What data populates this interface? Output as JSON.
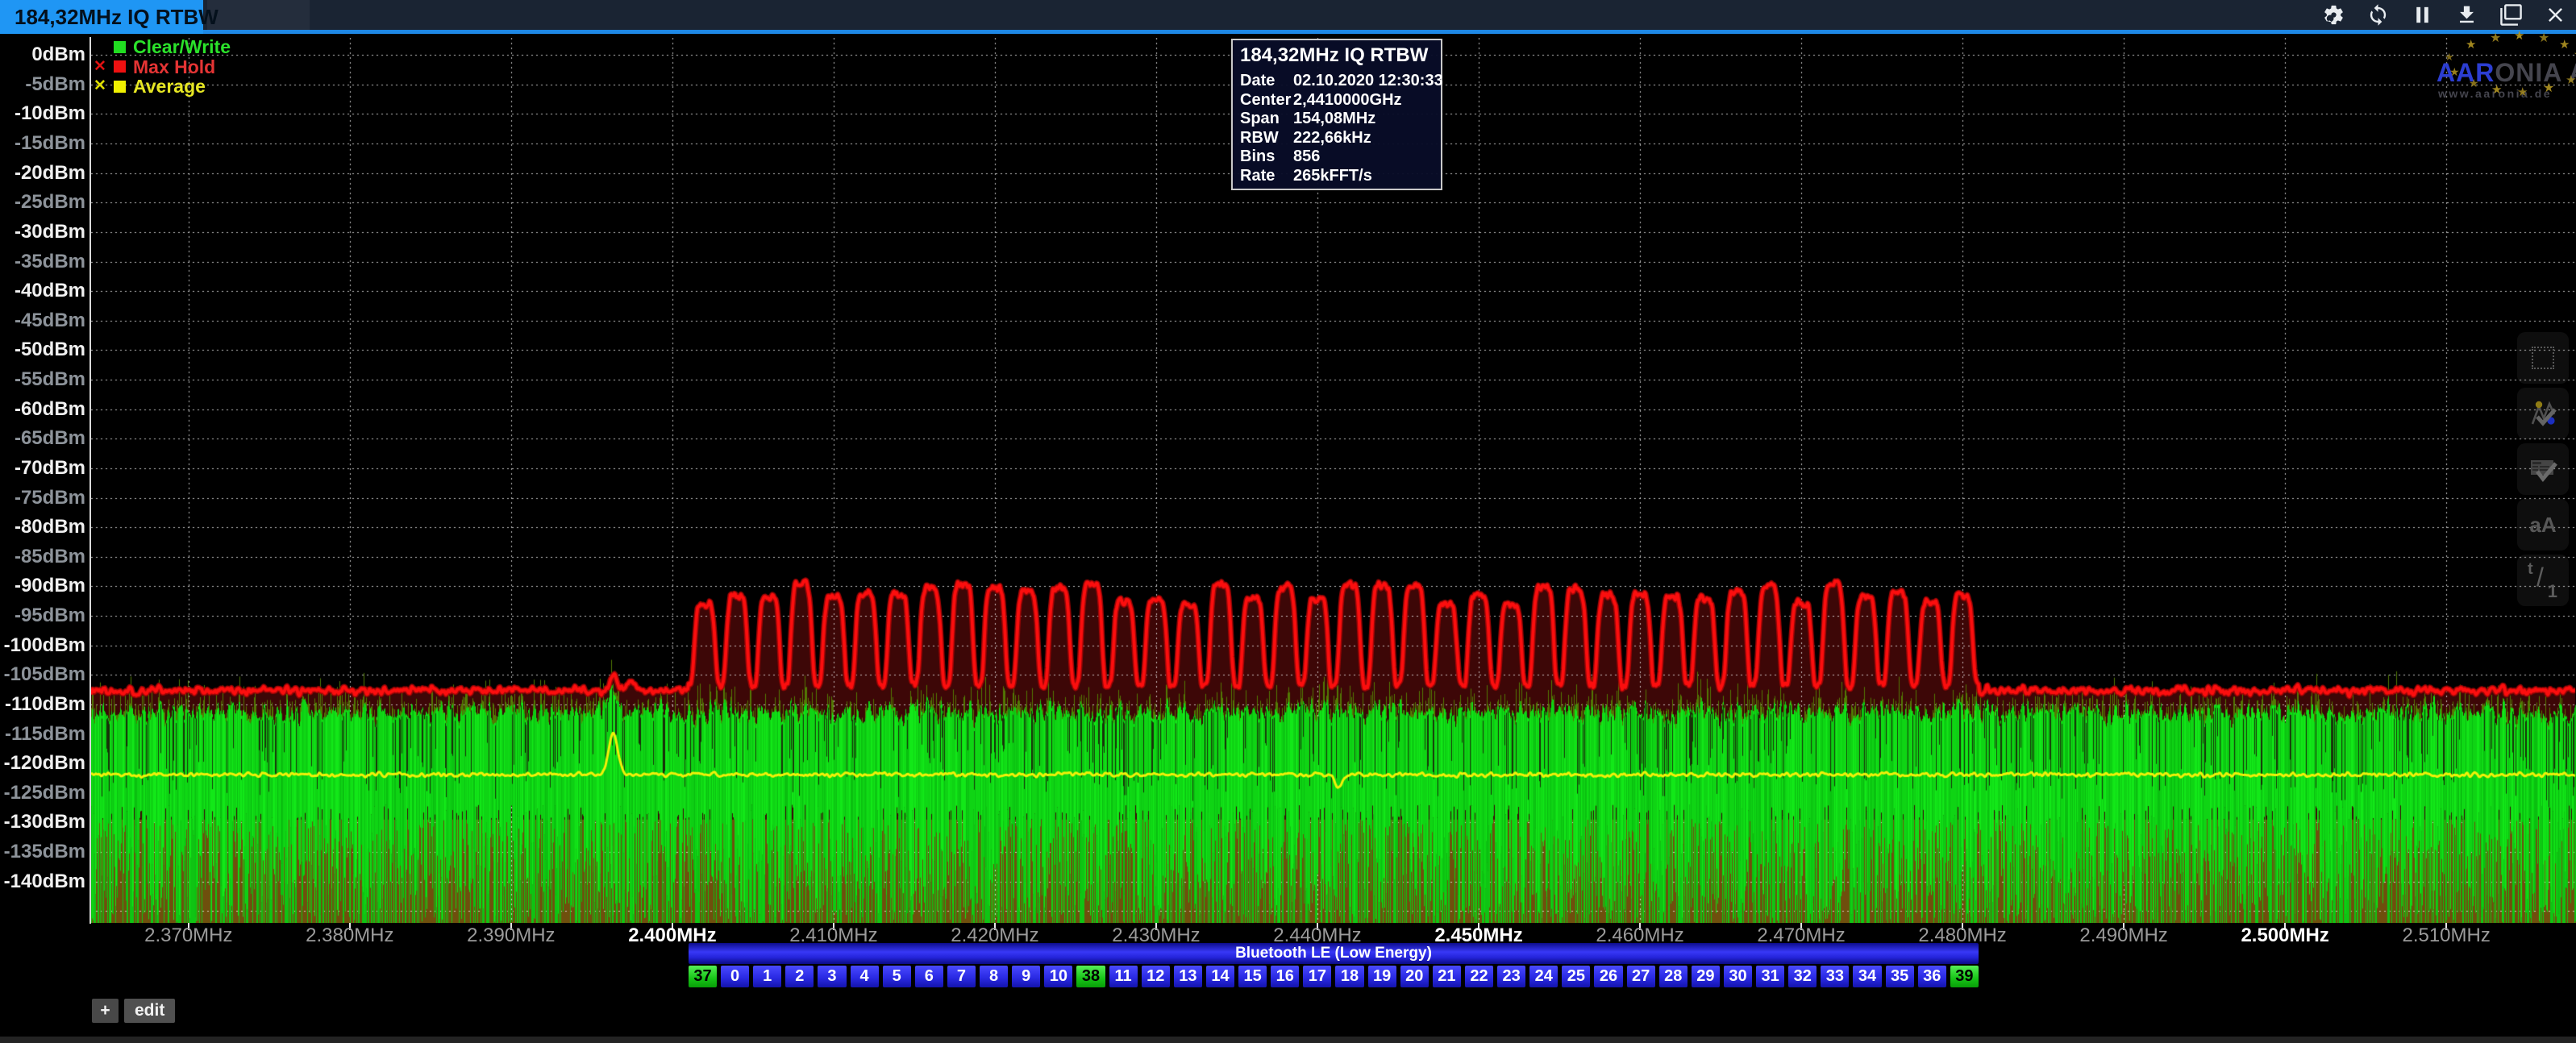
{
  "window": {
    "tab_title": "184,32MHz IQ RTBW",
    "icon_names": [
      "settings-icon",
      "sync-icon",
      "pause-icon",
      "download-icon",
      "cascade-windows-icon",
      "close-icon"
    ]
  },
  "legend": {
    "items": [
      {
        "label": "Clear/Write",
        "color": "#2be32b",
        "square": "#21dd21",
        "x_mark": "",
        "x_color": "#2be32b"
      },
      {
        "label": "Max Hold",
        "color": "#e43434",
        "square": "#ee1111",
        "x_mark": "✕",
        "x_color": "#e01212"
      },
      {
        "label": "Average",
        "color": "#e6e623",
        "square": "#f0f000",
        "x_mark": "✕",
        "x_color": "#dede00"
      }
    ]
  },
  "info_box": {
    "title": "184,32MHz IQ RTBW",
    "rows": [
      {
        "label": "Date",
        "value": "02.10.2020 12:30:33"
      },
      {
        "label": "Center",
        "value": "2,4410000GHz"
      },
      {
        "label": "Span",
        "value": "154,08MHz"
      },
      {
        "label": "RBW",
        "value": "222,66kHz"
      },
      {
        "label": "Bins",
        "value": "856"
      },
      {
        "label": "Rate",
        "value": "265kFFT/s"
      }
    ]
  },
  "watermark": {
    "brand_prefix": "AAR",
    "brand_suffix": "ONIA AG",
    "url": "www.aaronia.de"
  },
  "side_toolbar": {
    "buttons": [
      {
        "name": "selection-rectangle-button",
        "label": ""
      },
      {
        "name": "marker-peaks-button",
        "label": ""
      },
      {
        "name": "info-overlay-button",
        "label": ""
      },
      {
        "name": "font-size-button",
        "label": "aA"
      },
      {
        "name": "time-div-button",
        "label_t": "t",
        "label_slash": "/",
        "label_one": "1"
      }
    ]
  },
  "y_axis": {
    "unit": "dBm",
    "labels": [
      "0dBm",
      "-5dBm",
      "-10dBm",
      "-15dBm",
      "-20dBm",
      "-25dBm",
      "-30dBm",
      "-35dBm",
      "-40dBm",
      "-45dBm",
      "-50dBm",
      "-55dBm",
      "-60dBm",
      "-65dBm",
      "-70dBm",
      "-75dBm",
      "-80dBm",
      "-85dBm",
      "-90dBm",
      "-95dBm",
      "-100dBm",
      "-105dBm",
      "-110dBm",
      "-115dBm",
      "-120dBm",
      "-125dBm",
      "-130dBm",
      "-135dBm",
      "-140dBm"
    ]
  },
  "x_axis": {
    "ticks_mhz": [
      2370,
      2380,
      2390,
      2400,
      2410,
      2420,
      2430,
      2440,
      2450,
      2460,
      2470,
      2480,
      2490,
      2500,
      2510
    ],
    "labels": [
      "2.370MHz",
      "2.380MHz",
      "2.390MHz",
      "2.400MHz",
      "2.410MHz",
      "2.420MHz",
      "2.430MHz",
      "2.440MHz",
      "2.450MHz",
      "2.460MHz",
      "2.470MHz",
      "2.480MHz",
      "2.490MHz",
      "2.500MHz",
      "2.510MHz"
    ],
    "bold_labels": [
      "2.400MHz",
      "2.450MHz",
      "2.500MHz"
    ]
  },
  "bluetooth_bar": {
    "label": "Bluetooth LE (Low Energy)",
    "band_start_mhz": 2401,
    "band_end_mhz": 2481,
    "channels": [
      "37",
      "0",
      "1",
      "2",
      "3",
      "4",
      "5",
      "6",
      "7",
      "8",
      "9",
      "10",
      "38",
      "11",
      "12",
      "13",
      "14",
      "15",
      "16",
      "17",
      "18",
      "19",
      "20",
      "21",
      "22",
      "23",
      "24",
      "25",
      "26",
      "27",
      "28",
      "29",
      "30",
      "31",
      "32",
      "33",
      "34",
      "35",
      "36",
      "39"
    ],
    "advertising_channels": [
      "37",
      "38",
      "39"
    ]
  },
  "footer": {
    "add_button": "+",
    "edit_button": "edit"
  },
  "chart_data": {
    "type": "area",
    "title": "184,32MHz IQ RTBW",
    "x_start_mhz": 2363.96,
    "x_end_mhz": 2518.04,
    "y_top_dbm": 2.9,
    "y_bottom_dbm": -147,
    "grid_db_step": 5,
    "grid_mhz_step": 10,
    "series": [
      {
        "name": "Clear/Write",
        "type": "noise_band",
        "line_color": "#10d815",
        "spike_color": "#537f04",
        "top_dbm": -111.3,
        "top_jitter_db": 1.6,
        "ragged_jitter_db": 2.2,
        "spike_extra_db": 6,
        "solid_until_dbm": -127,
        "ragged_bottom_db": 20,
        "bottom_bg_color": "#6f4f0d",
        "spike_boost_mhz": 2396.35,
        "spike_boost_db": 4
      },
      {
        "name": "Max Hold",
        "type": "maxhold",
        "line_color": "#fb0e0e",
        "fill_color": "#3d0707",
        "baseline_dbm": -107.6,
        "noise_db": 1.0,
        "band_start_mhz": 2401,
        "band_end_mhz": 2481,
        "channel_start_mhz": 2402,
        "channel_step_mhz": 2,
        "channel_count": 40,
        "peak_dbm": -91.2,
        "peak_jitter_db": 1.8,
        "valley_dbm": -106.8,
        "peak_halfwidth_mhz": 0.68,
        "bump_mhz": 2396.35,
        "bump_dbm": -104.8,
        "bump2_mhz": 2397.45,
        "bump2_db": 1.5
      },
      {
        "name": "Average",
        "type": "line",
        "line_color": "#f1f108",
        "level_dbm": -121.9,
        "noise_db": 0.6,
        "spike_mhz": 2396.35,
        "spike_dbm": -114.8,
        "notch_mhz": 2441.3,
        "notch_db": 2.2
      }
    ]
  }
}
